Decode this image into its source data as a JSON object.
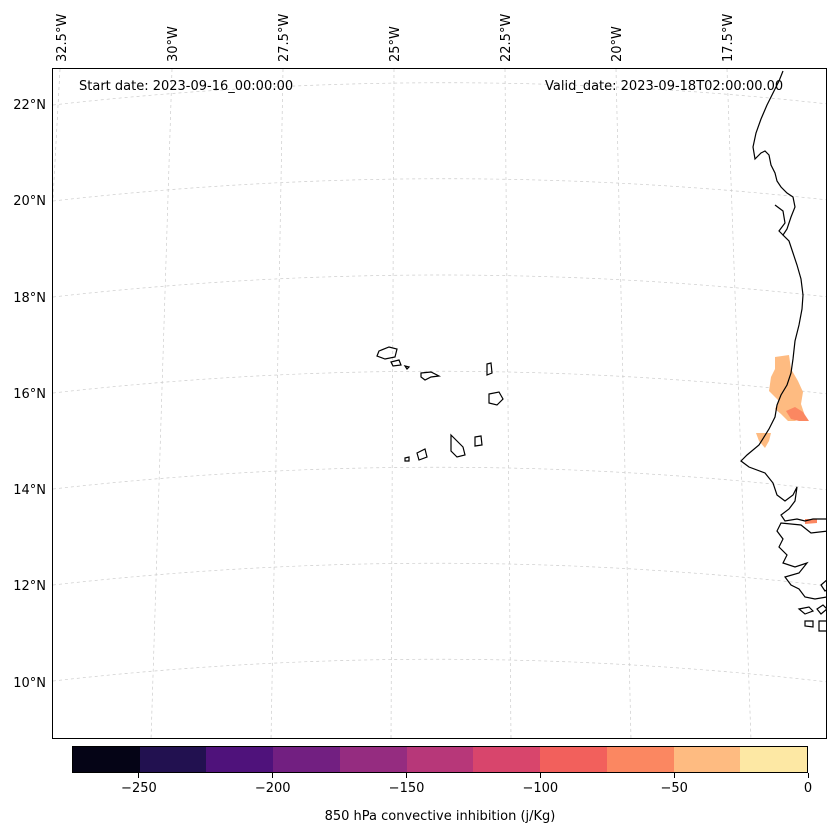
{
  "header": {
    "start_date": "Start date: 2023-09-16_00:00:00",
    "valid_date": "Valid_date: 2023-09-18T02:00:00.00"
  },
  "axes": {
    "lon_labels": [
      "32.5°W",
      "30°W",
      "27.5°W",
      "25°W",
      "22.5°W",
      "20°W",
      "17.5°W"
    ],
    "lat_labels": [
      "22°N",
      "20°N",
      "18°N",
      "16°N",
      "14°N",
      "12°N",
      "10°N"
    ],
    "gridlines": true
  },
  "colorbar": {
    "label": "850 hPa convective inhibition (j/Kg)",
    "tick_labels": [
      "−250",
      "−200",
      "−150",
      "−100",
      "−50",
      "0"
    ],
    "range": [
      -275,
      0
    ],
    "colors": [
      "#050416",
      "#221150",
      "#4f127b",
      "#721f81",
      "#952c80",
      "#b73779",
      "#d8456c",
      "#f2605c",
      "#fb8761",
      "#febb81",
      "#fde8a4"
    ]
  },
  "map": {
    "coastline_color": "#000000",
    "gridline_color": "#cccccc",
    "field_colors": [
      "#febb81",
      "#fb8761"
    ]
  }
}
